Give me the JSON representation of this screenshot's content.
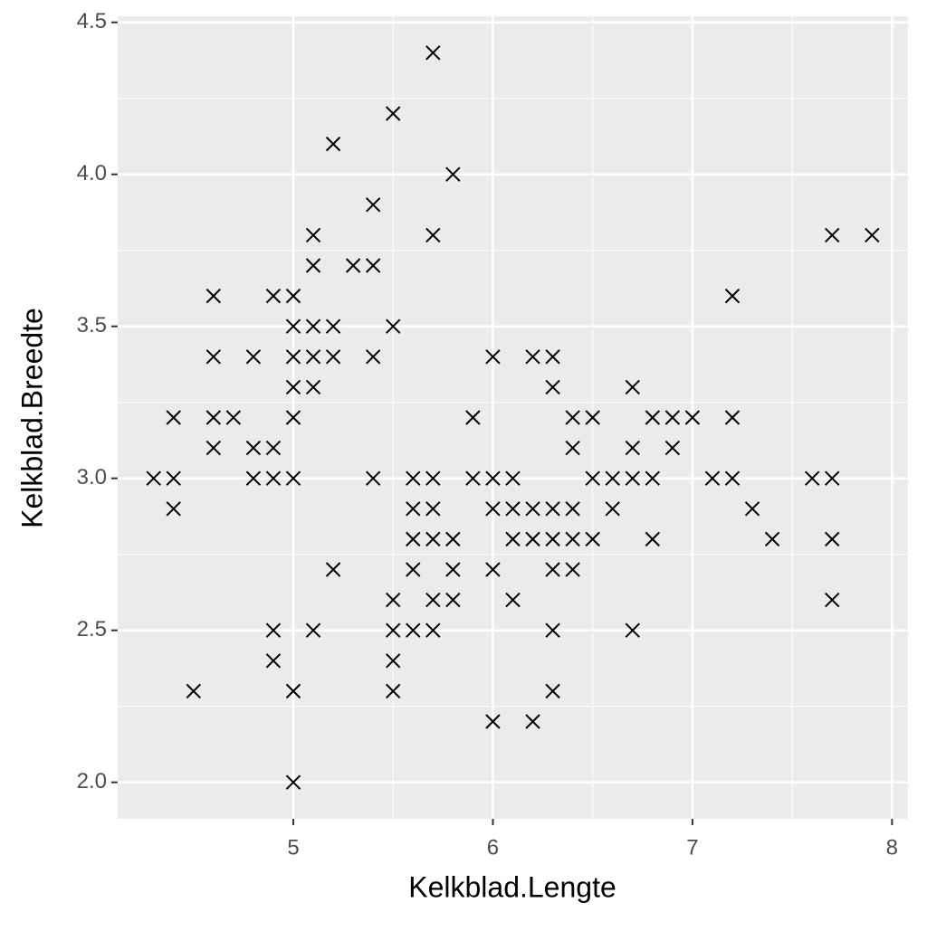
{
  "chart_data": {
    "type": "scatter",
    "x_label": "Kelkblad.Lengte",
    "y_label": "Kelkblad.Breedte",
    "xlim": [
      4.12,
      8.08
    ],
    "ylim": [
      1.88,
      4.52
    ],
    "xticks": [
      5,
      6,
      7,
      8
    ],
    "yticks": [
      {
        "value": 2,
        "label": "2.0"
      },
      2.5,
      {
        "value": 3,
        "label": "3.0"
      },
      3.5,
      {
        "value": 4,
        "label": "4.0"
      },
      4.5
    ],
    "grid": true,
    "marker": "x",
    "x": [
      5.7,
      5.5,
      5.2,
      5.8,
      5.4,
      5.1,
      5.7,
      7.7,
      7.9,
      5.1,
      5.3,
      5.4,
      4.6,
      4.9,
      5.0,
      7.2,
      5.0,
      5.1,
      5.2,
      5.5,
      4.6,
      4.8,
      5.0,
      5.1,
      5.2,
      5.4,
      6.0,
      6.2,
      6.3,
      5.0,
      5.1,
      6.3,
      6.7,
      4.4,
      4.6,
      4.7,
      5.0,
      5.9,
      6.4,
      6.5,
      6.8,
      6.9,
      7.0,
      7.2,
      4.6,
      4.8,
      4.9,
      6.4,
      6.7,
      6.9,
      4.3,
      4.4,
      4.8,
      4.9,
      5.0,
      5.4,
      5.6,
      5.7,
      5.9,
      6.0,
      6.1,
      6.5,
      6.6,
      6.7,
      6.8,
      7.1,
      7.2,
      7.6,
      7.7,
      4.4,
      5.6,
      5.7,
      6.0,
      6.1,
      6.2,
      6.3,
      6.4,
      6.6,
      7.3,
      5.6,
      5.7,
      5.8,
      6.1,
      6.2,
      6.3,
      6.4,
      6.5,
      6.8,
      7.4,
      7.7,
      5.2,
      5.6,
      5.8,
      6.0,
      6.3,
      6.4,
      5.5,
      5.7,
      5.8,
      6.1,
      7.7,
      4.9,
      5.1,
      5.5,
      5.6,
      5.7,
      6.3,
      6.7,
      4.9,
      5.5,
      4.5,
      5.0,
      5.5,
      6.3,
      6.0,
      6.2,
      5.0
    ],
    "series": [
      {
        "color": "#000000",
        "values": [
          4.4,
          4.2,
          4.1,
          4.0,
          3.9,
          3.8,
          3.8,
          3.8,
          3.8,
          3.7,
          3.7,
          3.7,
          3.6,
          3.6,
          3.6,
          3.6,
          3.5,
          3.5,
          3.5,
          3.5,
          3.4,
          3.4,
          3.4,
          3.4,
          3.4,
          3.4,
          3.4,
          3.4,
          3.4,
          3.3,
          3.3,
          3.3,
          3.3,
          3.2,
          3.2,
          3.2,
          3.2,
          3.2,
          3.2,
          3.2,
          3.2,
          3.2,
          3.2,
          3.2,
          3.1,
          3.1,
          3.1,
          3.1,
          3.1,
          3.1,
          3.0,
          3.0,
          3.0,
          3.0,
          3.0,
          3.0,
          3.0,
          3.0,
          3.0,
          3.0,
          3.0,
          3.0,
          3.0,
          3.0,
          3.0,
          3.0,
          3.0,
          3.0,
          3.0,
          2.9,
          2.9,
          2.9,
          2.9,
          2.9,
          2.9,
          2.9,
          2.9,
          2.9,
          2.9,
          2.8,
          2.8,
          2.8,
          2.8,
          2.8,
          2.8,
          2.8,
          2.8,
          2.8,
          2.8,
          2.8,
          2.7,
          2.7,
          2.7,
          2.7,
          2.7,
          2.7,
          2.6,
          2.6,
          2.6,
          2.6,
          2.6,
          2.5,
          2.5,
          2.5,
          2.5,
          2.5,
          2.5,
          2.5,
          2.4,
          2.4,
          2.3,
          2.3,
          2.3,
          2.3,
          2.2,
          2.2,
          2.0
        ]
      }
    ]
  }
}
